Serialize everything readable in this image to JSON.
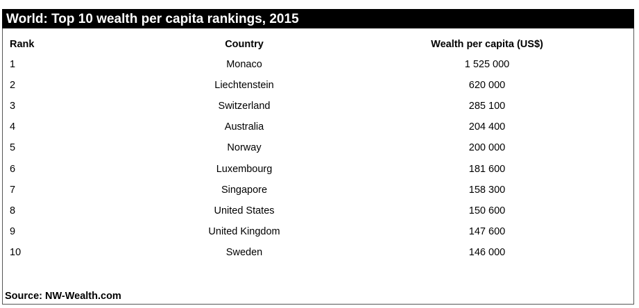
{
  "header": {
    "title": "World: Top 10 wealth per capita rankings, 2015"
  },
  "table": {
    "columns": [
      "Rank",
      "Country",
      "Wealth per capita (US$)"
    ],
    "rows": [
      [
        "1",
        "Monaco",
        "1 525 000"
      ],
      [
        "2",
        "Liechtenstein",
        "620 000"
      ],
      [
        "3",
        "Switzerland",
        "285 100"
      ],
      [
        "4",
        "Australia",
        "204 400"
      ],
      [
        "5",
        "Norway",
        "200 000"
      ],
      [
        "6",
        "Luxembourg",
        "181 600"
      ],
      [
        "7",
        "Singapore",
        "158 300"
      ],
      [
        "8",
        "United States",
        "150 600"
      ],
      [
        "9",
        "United Kingdom",
        "147 600"
      ],
      [
        "10",
        "Sweden",
        "146 000"
      ]
    ]
  },
  "footer": {
    "source": "Source: NW-Wealth.com"
  }
}
